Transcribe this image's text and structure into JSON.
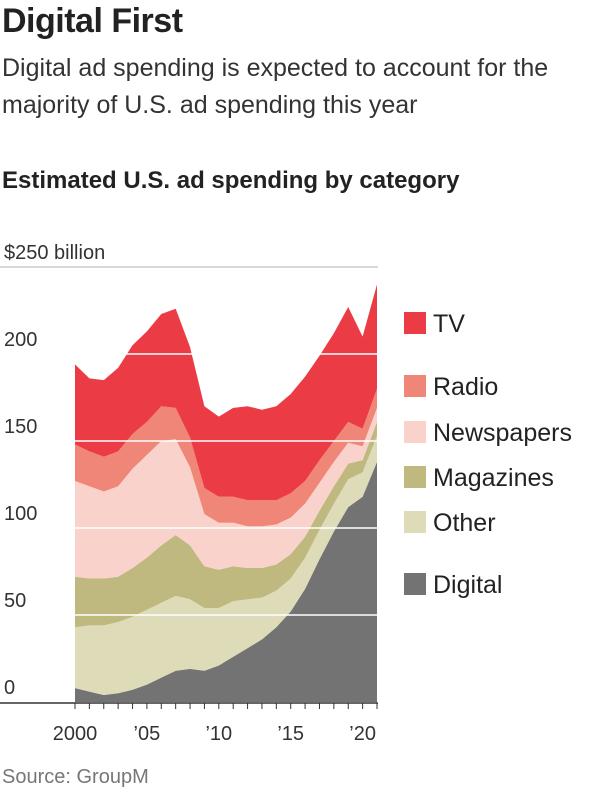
{
  "headline": "Digital First",
  "dek": "Digital ad spending is expected to account for the majority of U.S. ad spending this year",
  "source": "Source: GroupM",
  "chart_data": {
    "type": "area",
    "stacked": true,
    "title": "Estimated U.S. ad spending by category",
    "ylabel": "$250 billion",
    "xlabel": "",
    "ylim": [
      0,
      250
    ],
    "xlim": [
      2000,
      2021
    ],
    "y_ticks": [
      0,
      50,
      100,
      150,
      200
    ],
    "y_tick_labels": [
      "0",
      "50",
      "100",
      "150",
      "200"
    ],
    "y_top_label": "$250 billion",
    "x_ticks": [
      2000,
      2005,
      2010,
      2015,
      2020
    ],
    "x_tick_labels": [
      "2000",
      "’05",
      "’10",
      "’15",
      "’20"
    ],
    "grid": true,
    "legend_position": "right",
    "x": [
      2000,
      2001,
      2002,
      2003,
      2004,
      2005,
      2006,
      2007,
      2008,
      2009,
      2010,
      2011,
      2012,
      2013,
      2014,
      2015,
      2016,
      2017,
      2018,
      2019,
      2020,
      2021
    ],
    "series": [
      {
        "name": "Digital",
        "color": "#737373",
        "values": [
          8,
          6,
          4,
          5,
          7,
          10,
          14,
          18,
          19,
          18,
          21,
          26,
          31,
          36,
          43,
          52,
          65,
          82,
          98,
          112,
          118,
          138
        ]
      },
      {
        "name": "Other",
        "color": "#dedbb8",
        "values": [
          35,
          38,
          40,
          41,
          42,
          43,
          43,
          43,
          40,
          36,
          33,
          32,
          28,
          24,
          21,
          19,
          18,
          17,
          16,
          16,
          14,
          15
        ]
      },
      {
        "name": "Magazines",
        "color": "#bfb87f",
        "values": [
          29,
          27,
          27,
          26,
          28,
          30,
          33,
          35,
          31,
          24,
          22,
          20,
          18,
          17,
          15,
          14,
          12,
          11,
          10,
          9,
          7,
          8
        ]
      },
      {
        "name": "Newspapers",
        "color": "#f9d3cb",
        "values": [
          55,
          53,
          50,
          52,
          57,
          59,
          60,
          55,
          45,
          30,
          27,
          25,
          24,
          24,
          23,
          21,
          19,
          16,
          14,
          12,
          8,
          8
        ]
      },
      {
        "name": "Radio",
        "color": "#ef8678",
        "values": [
          21,
          20,
          20,
          20,
          20,
          19,
          20,
          18,
          17,
          15,
          15,
          15,
          15,
          15,
          14,
          14,
          13,
          13,
          12,
          12,
          10,
          11
        ]
      },
      {
        "name": "TV",
        "color": "#eb3c46",
        "values": [
          46,
          42,
          44,
          48,
          51,
          52,
          53,
          57,
          52,
          47,
          46,
          51,
          54,
          52,
          54,
          57,
          60,
          60,
          62,
          66,
          53,
          60
        ]
      }
    ]
  }
}
